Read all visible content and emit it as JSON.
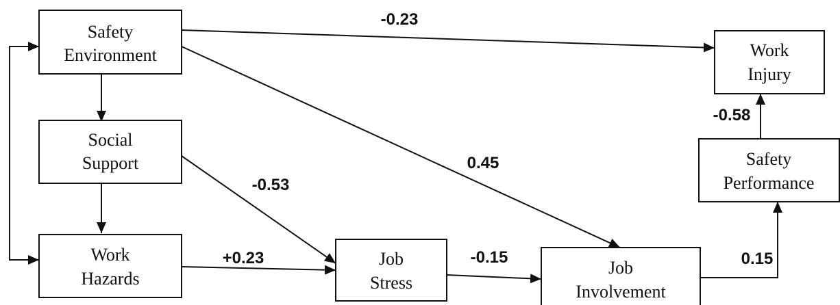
{
  "nodes": [
    {
      "lines": [
        "Safety",
        "Environment"
      ]
    },
    {
      "lines": [
        "Social",
        "Support"
      ]
    },
    {
      "lines": [
        "Work",
        "Hazards"
      ]
    },
    {
      "lines": [
        "Job",
        "Stress"
      ]
    },
    {
      "lines": [
        "Job",
        "Involvement"
      ]
    },
    {
      "lines": [
        "Work",
        "Injury"
      ]
    },
    {
      "lines": [
        "Safety",
        "Performance"
      ]
    }
  ],
  "edges": [
    {
      "from": "Safety Environment",
      "to": "Work Injury",
      "label": "-0.23"
    },
    {
      "from": "Safety Environment",
      "to": "Job Involvement",
      "label": "0.45"
    },
    {
      "from": "Social Support",
      "to": "Job Stress",
      "label": "-0.53"
    },
    {
      "from": "Work Hazards",
      "to": "Job Stress",
      "label": "+0.23"
    },
    {
      "from": "Job Stress",
      "to": "Job Involvement",
      "label": "-0.15"
    },
    {
      "from": "Job Involvement",
      "to": "Safety Performance",
      "label": "0.15"
    },
    {
      "from": "Safety Performance",
      "to": "Work Injury",
      "label": "-0.58"
    }
  ]
}
